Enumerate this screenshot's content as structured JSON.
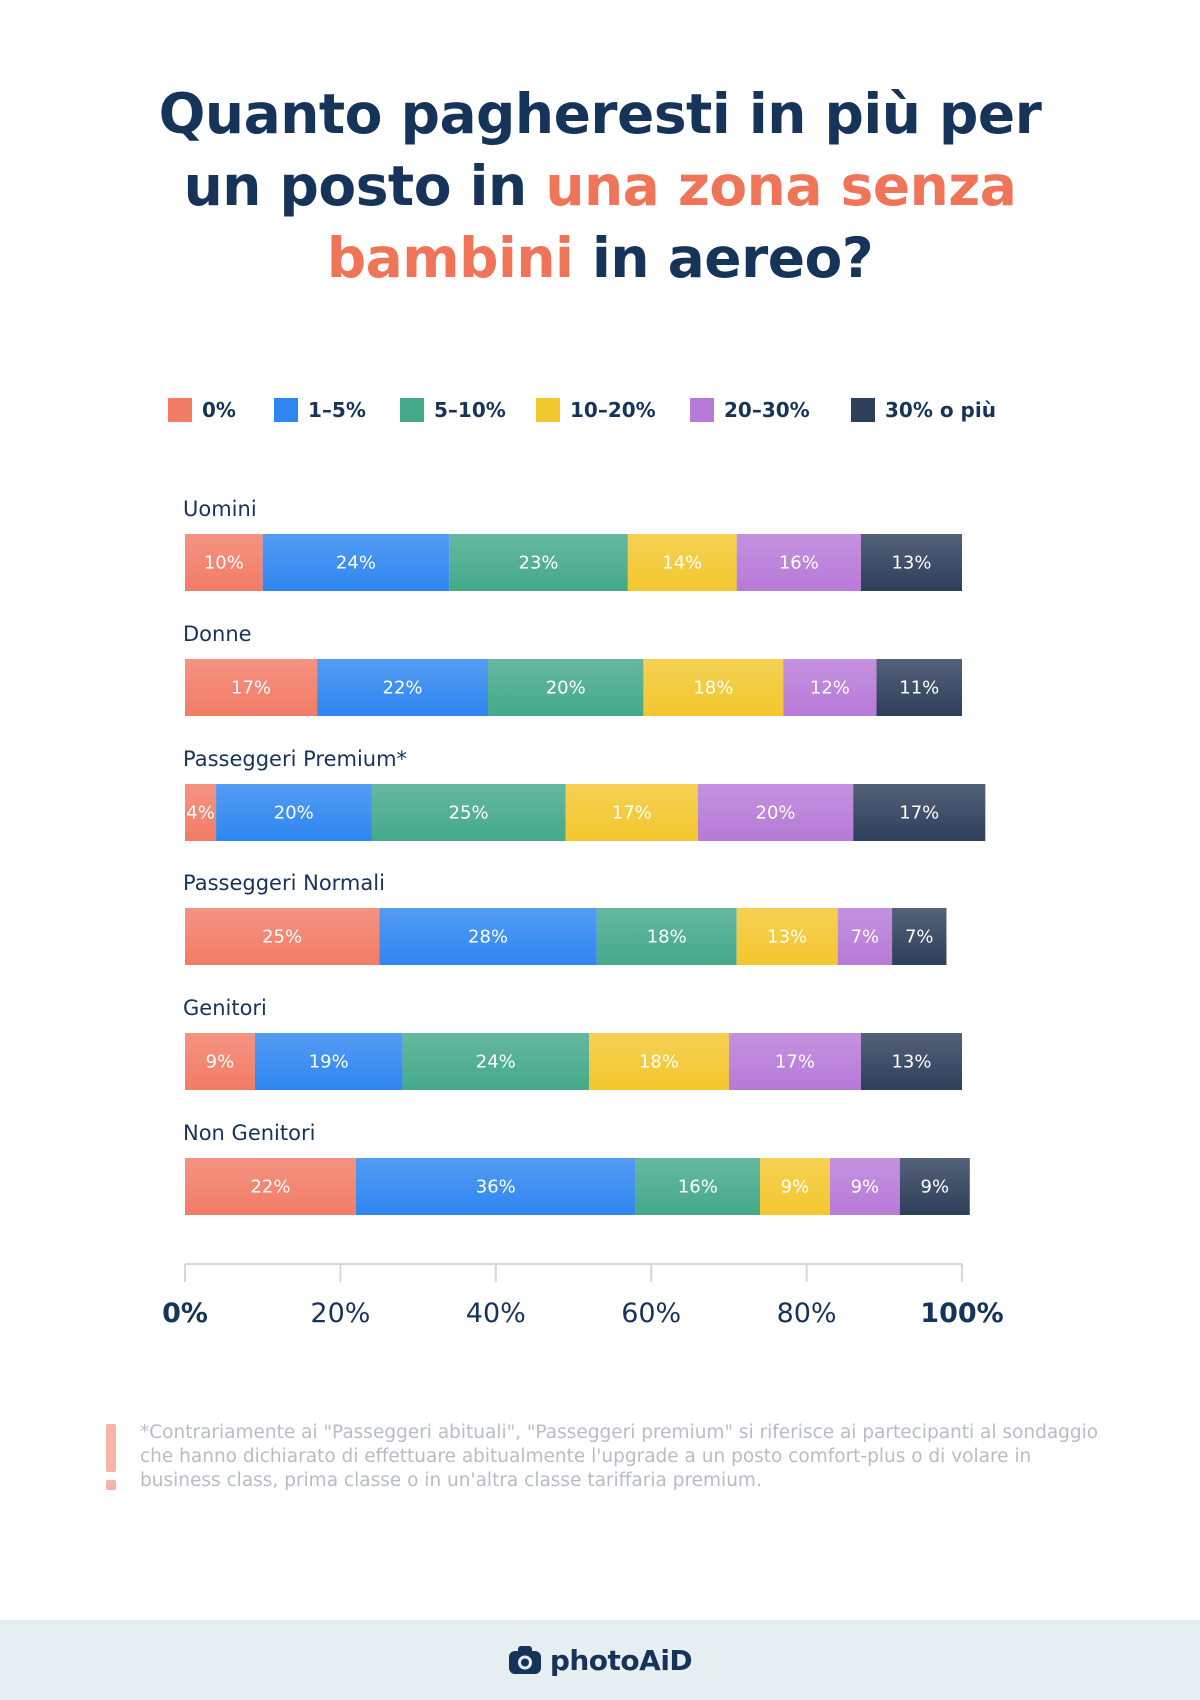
{
  "title": {
    "line1": "Quanto pagheresti in più per",
    "line2_a": "un posto in ",
    "line2_b": "una zona senza",
    "line3_a": "bambini",
    "line3_b": " in aereo?"
  },
  "colors": {
    "title": "#16345a",
    "accent": "#f07458",
    "categories": [
      "#f27c66",
      "#2e86f0",
      "#44a98a",
      "#f3c72e",
      "#b77ad8",
      "#2e3f5b"
    ]
  },
  "legend": [
    {
      "label": "0%"
    },
    {
      "label": "1–5%"
    },
    {
      "label": "5–10%"
    },
    {
      "label": "10–20%"
    },
    {
      "label": "20–30%"
    },
    {
      "label": "30% o più"
    }
  ],
  "chart_data": {
    "type": "bar",
    "orientation": "horizontal",
    "stacked": true,
    "categories": [
      "Uomini",
      "Donne",
      "Passeggeri Premium*",
      "Passeggeri Normali",
      "Genitori",
      "Non Genitori"
    ],
    "series": [
      {
        "name": "0%",
        "values": [
          10,
          17,
          4,
          25,
          9,
          22
        ]
      },
      {
        "name": "1–5%",
        "values": [
          24,
          22,
          20,
          28,
          19,
          36
        ]
      },
      {
        "name": "5–10%",
        "values": [
          23,
          20,
          25,
          18,
          24,
          16
        ]
      },
      {
        "name": "10–20%",
        "values": [
          14,
          18,
          17,
          13,
          18,
          9
        ]
      },
      {
        "name": "20–30%",
        "values": [
          16,
          12,
          20,
          7,
          17,
          9
        ]
      },
      {
        "name": "30% o più",
        "values": [
          13,
          11,
          17,
          7,
          13,
          9
        ]
      }
    ],
    "xlim": [
      0,
      100
    ],
    "x_ticks": [
      "0%",
      "20%",
      "40%",
      "60%",
      "80%",
      "100%"
    ],
    "legend_position": "top"
  },
  "footnote": "*Contrariamente ai \"Passeggeri abituali\", \"Passeggeri premium\" si riferisce ai partecipanti al sondaggio che hanno dichiarato di effettuare abitualmente l'upgrade a un posto comfort-plus o di volare in business class, prima classe o in un'altra classe tariffaria premium.",
  "footer": {
    "brand": "photoAiD",
    "icon": "camera-icon"
  }
}
